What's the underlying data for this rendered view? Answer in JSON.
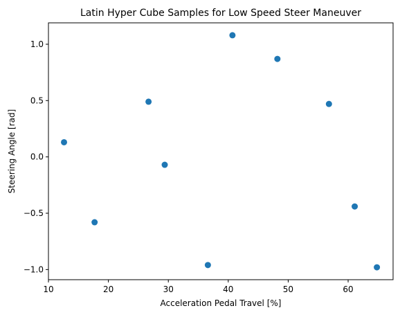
{
  "chart_data": {
    "type": "scatter",
    "title": "Latin Hyper Cube Samples for Low Speed Steer Maneuver",
    "xlabel": "Acceleration Pedal Travel [%]",
    "ylabel": "Steering Angle [rad]",
    "xlim": [
      10,
      67.5
    ],
    "ylim": [
      -1.09,
      1.19
    ],
    "xticks": [
      10,
      20,
      30,
      40,
      50,
      60
    ],
    "xtick_labels": [
      "10",
      "20",
      "30",
      "40",
      "50",
      "60"
    ],
    "yticks": [
      -1.0,
      -0.5,
      0.0,
      0.5,
      1.0
    ],
    "ytick_labels": [
      "−1.0",
      "−0.5",
      "0.0",
      "0.5",
      "1.0"
    ],
    "grid": false,
    "marker_color": "#1f77b4",
    "series": [
      {
        "x": [
          12.6,
          17.7,
          26.7,
          29.4,
          36.6,
          40.7,
          48.2,
          56.8,
          61.1,
          64.8
        ],
        "y": [
          0.13,
          -0.58,
          0.49,
          -0.07,
          -0.96,
          1.08,
          0.87,
          0.47,
          -0.44,
          -0.98
        ]
      }
    ]
  }
}
